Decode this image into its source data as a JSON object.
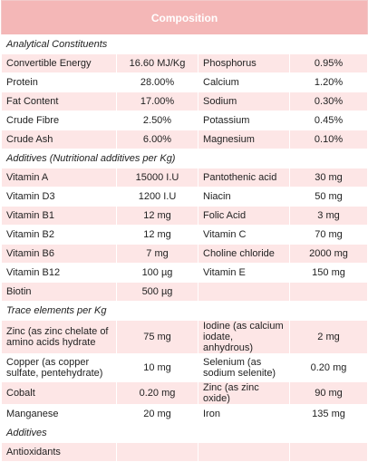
{
  "header": {
    "title": "Composition"
  },
  "sections": [
    {
      "title": "Analytical Constituents",
      "rows": [
        [
          "Convertible Energy",
          "16.60 MJ/Kg",
          "Phosphorus",
          "0.95%"
        ],
        [
          "Protein",
          "28.00%",
          "Calcium",
          "1.20%"
        ],
        [
          "Fat Content",
          "17.00%",
          "Sodium",
          "0.30%"
        ],
        [
          "Crude Fibre",
          "2.50%",
          "Potassium",
          "0.45%"
        ],
        [
          "Crude Ash",
          "6.00%",
          "Magnesium",
          "0.10%"
        ]
      ]
    },
    {
      "title": "Additives (Nutritional additives per Kg)",
      "rows": [
        [
          "Vitamin A",
          "15000 I.U",
          "Pantothenic acid",
          "30 mg"
        ],
        [
          "Vitamin D3",
          "1200 I.U",
          "Niacin",
          "50 mg"
        ],
        [
          "Vitamin B1",
          "12 mg",
          "Folic Acid",
          "3 mg"
        ],
        [
          "Vitamin B2",
          "12 mg",
          "Vitamin C",
          "70 mg"
        ],
        [
          "Vitamin B6",
          "7 mg",
          "Choline chloride",
          "2000 mg"
        ],
        [
          "Vitamin B12",
          "100 µg",
          "Vitamin E",
          "150 mg"
        ],
        [
          "Biotin",
          "500 µg"
        ]
      ]
    },
    {
      "title": "Trace elements per Kg",
      "rows": [
        [
          "Zinc  (as zinc chelate of amino acids hydrate",
          "75 mg",
          "Iodine (as calcium iodate, anhydrous)",
          "2 mg"
        ],
        [
          "Copper (as copper sulfate, pentehydrate)",
          "10 mg",
          "Selenium (as sodium selenite)",
          "0.20 mg"
        ],
        [
          "Cobalt",
          "0.20 mg",
          "Zinc (as zinc oxide)",
          "90 mg"
        ],
        [
          "Manganese",
          "20 mg",
          "Iron",
          "135 mg"
        ]
      ]
    },
    {
      "title": "Additives",
      "rows": [
        [
          "Antioxidants"
        ]
      ]
    }
  ]
}
